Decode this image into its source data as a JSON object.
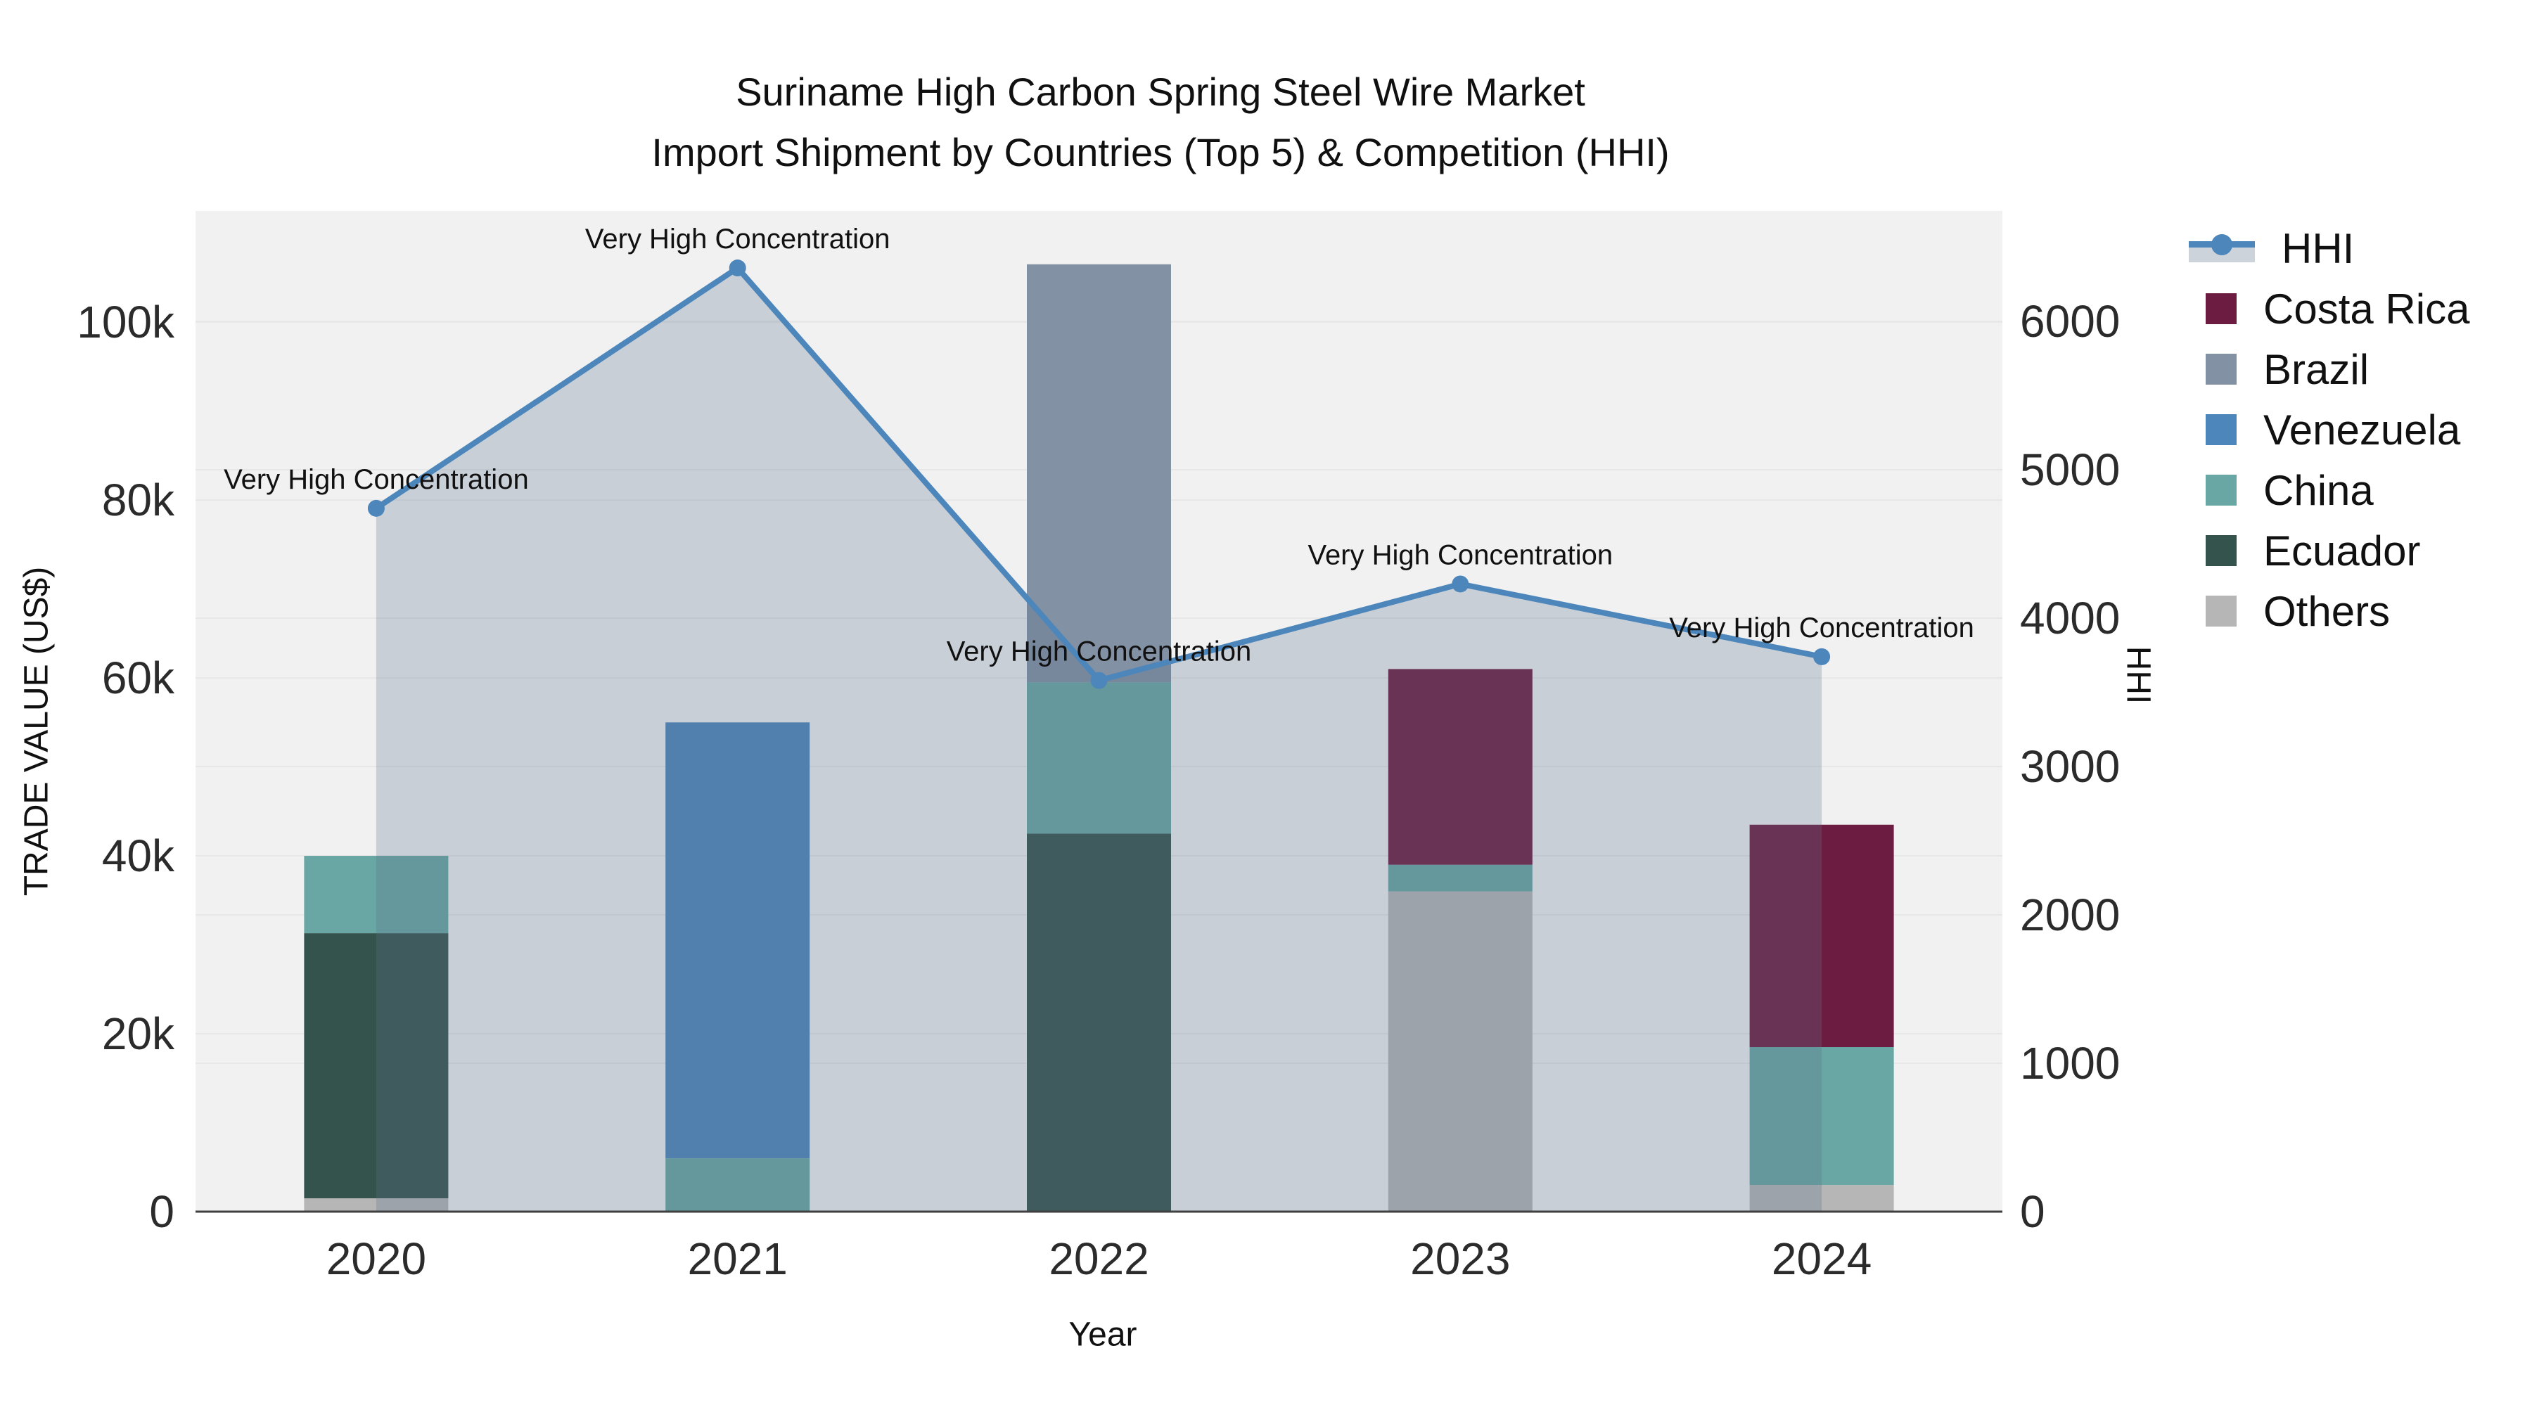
{
  "title": {
    "line1": "Suriname High Carbon Spring Steel Wire Market",
    "line2": "Import Shipment by Countries (Top 5) & Competition (HHI)"
  },
  "axes": {
    "left_title": "TRADE VALUE (US$)",
    "bottom_title": "Year",
    "right_title": "HHI"
  },
  "legend": {
    "items": [
      {
        "label": "HHI",
        "color": "#4c86bb",
        "type": "line"
      },
      {
        "label": "Costa Rica",
        "color": "#6d1c41",
        "type": "square"
      },
      {
        "label": "Brazil",
        "color": "#8291a4",
        "type": "square"
      },
      {
        "label": "Venezuela",
        "color": "#4d86bb",
        "type": "square"
      },
      {
        "label": "China",
        "color": "#68a7a3",
        "type": "square"
      },
      {
        "label": "Ecuador",
        "color": "#35534d",
        "type": "square"
      },
      {
        "label": "Others",
        "color": "#b5b6b5",
        "type": "square"
      }
    ]
  },
  "chart_data": {
    "type": "bar",
    "subtype": "stacked-bars-with-line-area",
    "title": "Suriname High Carbon Spring Steel Wire Market Import Shipment by Countries (Top 5) & Competition (HHI)",
    "xlabel": "Year",
    "ylabel_left": "TRADE VALUE (US$)",
    "ylabel_right": "HHI",
    "grid": true,
    "legend_position": "right",
    "categories": [
      "2020",
      "2021",
      "2022",
      "2023",
      "2024"
    ],
    "series": [
      {
        "name": "Costa Rica",
        "color": "#6d1c41",
        "values": [
          0,
          0,
          0,
          22000,
          25000
        ]
      },
      {
        "name": "Brazil",
        "color": "#8291a4",
        "values": [
          0,
          0,
          47000,
          0,
          0
        ]
      },
      {
        "name": "Venezuela",
        "color": "#4d86bb",
        "values": [
          0,
          49000,
          0,
          0,
          0
        ]
      },
      {
        "name": "China",
        "color": "#68a7a3",
        "values": [
          8700,
          6000,
          17000,
          3000,
          15500
        ]
      },
      {
        "name": "Ecuador",
        "color": "#35534d",
        "values": [
          29800,
          0,
          42500,
          0,
          0
        ]
      },
      {
        "name": "Others",
        "color": "#b5b6b5",
        "values": [
          1500,
          0,
          0,
          36000,
          3000
        ]
      }
    ],
    "stack_order": [
      "Others",
      "Ecuador",
      "China",
      "Venezuela",
      "Brazil",
      "Costa Rica"
    ],
    "bar_totals": [
      40000,
      55000,
      106500,
      61000,
      43500
    ],
    "hhi": {
      "name": "HHI",
      "color": "#4c86bb",
      "area_fill": "rgba(92,114,141,0.27)",
      "values": [
        4740,
        6360,
        3580,
        4230,
        3740
      ]
    },
    "annotation_labels": [
      "Very High Concentration",
      "Very High Concentration",
      "Very High Concentration",
      "Very High Concentration",
      "Very High Concentration"
    ],
    "left_axis": {
      "max": 112500,
      "ticks": [
        {
          "v": 0,
          "label": "0"
        },
        {
          "v": 20000,
          "label": "20k"
        },
        {
          "v": 40000,
          "label": "40k"
        },
        {
          "v": 60000,
          "label": "60k"
        },
        {
          "v": 80000,
          "label": "80k"
        },
        {
          "v": 100000,
          "label": "100k"
        }
      ]
    },
    "right_axis": {
      "max": 6744,
      "ticks": [
        {
          "v": 0,
          "label": "0"
        },
        {
          "v": 1000,
          "label": "1000"
        },
        {
          "v": 2000,
          "label": "2000"
        },
        {
          "v": 3000,
          "label": "3000"
        },
        {
          "v": 4000,
          "label": "4000"
        },
        {
          "v": 5000,
          "label": "5000"
        },
        {
          "v": 6000,
          "label": "6000"
        }
      ]
    }
  }
}
